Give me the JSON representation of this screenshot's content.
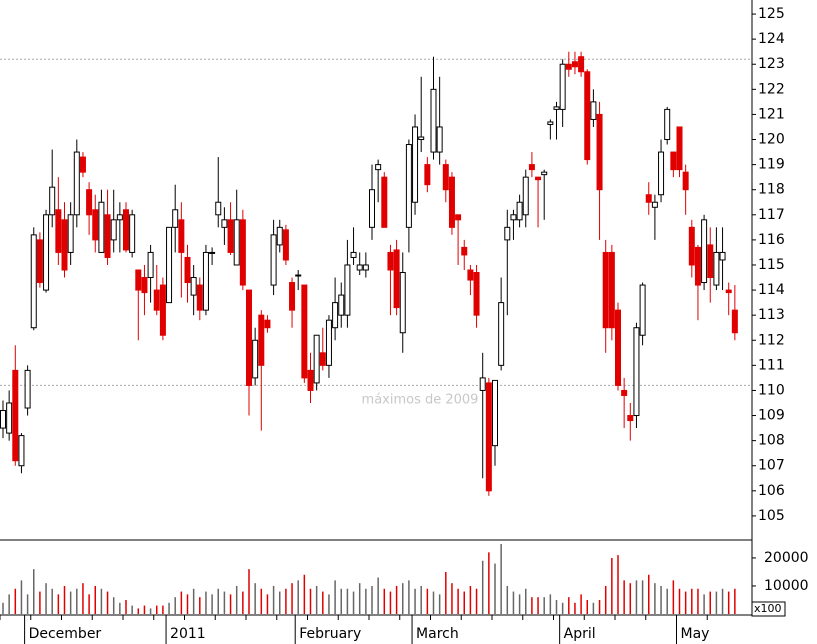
{
  "chart_data": {
    "type": "candlestick",
    "categories": [
      null,
      null,
      null,
      null,
      "December",
      null,
      null,
      null,
      null,
      null,
      null,
      null,
      null,
      null,
      null,
      null,
      null,
      null,
      null,
      null,
      null,
      null,
      null,
      null,
      null,
      null,
      null,
      "2011",
      null,
      null,
      null,
      null,
      null,
      null,
      null,
      null,
      null,
      null,
      null,
      null,
      null,
      null,
      null,
      null,
      null,
      null,
      null,
      null,
      "February",
      null,
      null,
      null,
      null,
      null,
      null,
      null,
      null,
      null,
      null,
      null,
      null,
      null,
      null,
      null,
      null,
      null,
      null,
      "March",
      null,
      null,
      null,
      null,
      null,
      null,
      null,
      null,
      null,
      null,
      null,
      null,
      null,
      null,
      null,
      null,
      null,
      null,
      null,
      null,
      null,
      null,
      null,
      "April",
      null,
      null,
      null,
      null,
      null,
      null,
      null,
      null,
      null,
      null,
      null,
      null,
      null,
      null,
      null,
      null,
      null,
      null,
      "May",
      null,
      null,
      null,
      null,
      null,
      null,
      null,
      null,
      null
    ],
    "open": [
      108.5,
      108.3,
      110.8,
      107,
      109.3,
      112.5,
      116,
      114,
      117,
      117.2,
      116.8,
      115.5,
      117,
      119.3,
      118,
      117.2,
      115.5,
      117,
      116,
      116.8,
      117.2,
      115.5,
      114.8,
      114.5,
      114.5,
      114,
      114.2,
      113.5,
      116.5,
      116.8,
      115.3,
      113.8,
      114.2,
      113.2,
      115.5,
      117,
      116.5,
      116.8,
      115,
      116.8,
      114,
      110.5,
      113,
      112.8,
      114.2,
      115.8,
      116.4,
      114.3,
      114.6,
      114.2,
      110.8,
      110.3,
      111.5,
      111,
      112.5,
      113,
      113,
      115.3,
      114.8,
      114.8,
      116.5,
      118.8,
      118.5,
      115.5,
      115.6,
      112.3,
      116.5,
      117.5,
      120,
      119,
      119.5,
      119.5,
      119,
      118.5,
      117,
      115.7,
      114.8,
      114.7,
      110,
      110.3,
      107.8,
      111,
      116,
      116.8,
      116.8,
      117,
      119,
      118.5,
      118.6,
      120.6,
      121.2,
      121.2,
      123,
      123.1,
      123.3,
      122.7,
      120.8,
      121,
      115.5,
      115.5,
      113.2,
      110,
      109,
      109,
      112.2,
      117.8,
      117.3,
      117.8,
      120,
      119.5,
      120.5,
      118.7,
      116.5,
      115.7,
      114.3,
      115.8,
      114.2,
      115.2,
      114,
      113.2
    ],
    "high": [
      109.6,
      110,
      111.8,
      108.3,
      111,
      116.5,
      116.3,
      117.2,
      119.6,
      118.5,
      117.5,
      117.5,
      120,
      119.5,
      118.3,
      117.8,
      118,
      118,
      118,
      117.5,
      117.5,
      117.2,
      114.8,
      115,
      115.8,
      115,
      114.5,
      116.5,
      118.2,
      117.5,
      115.8,
      115,
      114.5,
      115.8,
      115.7,
      119.3,
      117.3,
      117.5,
      118,
      117.2,
      114,
      112.5,
      113.2,
      113,
      116.8,
      116.8,
      116.6,
      114.5,
      114.8,
      114.2,
      111.5,
      112.2,
      112.5,
      113,
      114.5,
      114.3,
      116,
      116.5,
      115.5,
      115.5,
      119,
      119.2,
      118.7,
      115.8,
      116,
      115.5,
      120,
      121,
      122.5,
      119.3,
      123.3,
      122.5,
      119.2,
      118.7,
      117,
      116,
      115,
      115,
      111.5,
      110.5,
      110.4,
      114.5,
      117.2,
      117.2,
      117.8,
      118.8,
      119.5,
      118.5,
      118.8,
      120.8,
      121.5,
      123.2,
      123.5,
      123.5,
      123.5,
      122.8,
      122,
      121.5,
      116,
      115.8,
      113.5,
      110.5,
      109.5,
      112.7,
      114.3,
      118.3,
      117.8,
      120,
      121.3,
      119.5,
      120.5,
      119,
      116.8,
      115.8,
      117,
      116.5,
      116.5,
      116.5,
      114.3,
      114.2
    ],
    "low": [
      108.1,
      108,
      107,
      106.7,
      109,
      112.4,
      114.1,
      113.9,
      116.5,
      115,
      114.5,
      115,
      116.5,
      118.5,
      116.2,
      115.5,
      115.5,
      115,
      115.5,
      115.5,
      115.5,
      115.3,
      112,
      113,
      113.5,
      113,
      112,
      113.5,
      115.5,
      113.7,
      113.5,
      113,
      112.8,
      113,
      115,
      116.5,
      115.8,
      115.4,
      115,
      114,
      109,
      110.2,
      108.4,
      112.3,
      113.8,
      115.5,
      115,
      112.5,
      114,
      110.3,
      109.5,
      110,
      110.8,
      110.5,
      112,
      112.5,
      112.5,
      115,
      114.6,
      114.5,
      116,
      117.5,
      116.5,
      113,
      113,
      111.5,
      115.5,
      117,
      119.5,
      117.9,
      119.2,
      119,
      117.5,
      116.2,
      115,
      114.8,
      113.8,
      112.5,
      106.5,
      105.8,
      107,
      110.8,
      113,
      116,
      116.5,
      116.5,
      118.5,
      116.5,
      116.8,
      120,
      120,
      120.5,
      122.5,
      122.6,
      122.5,
      119,
      120.5,
      116,
      111.5,
      112,
      110,
      108.5,
      108,
      108.5,
      111.8,
      117,
      116,
      117.5,
      119.8,
      118.5,
      118.5,
      117,
      114.5,
      112.8,
      114,
      113.5,
      114,
      114,
      113,
      112
    ],
    "close": [
      109.2,
      109.5,
      107.2,
      108.2,
      110.8,
      116.2,
      114.3,
      117,
      118.1,
      115.5,
      114.8,
      117,
      119.5,
      118.7,
      117,
      116,
      117.5,
      115.3,
      116.8,
      117,
      115.6,
      117,
      114,
      113.9,
      115.5,
      113.2,
      112.2,
      116.5,
      117.2,
      115.5,
      114.3,
      114.5,
      113.2,
      115.5,
      115.5,
      117.5,
      116.8,
      115.5,
      116.8,
      114.2,
      110.2,
      112,
      111,
      112.5,
      116.2,
      116.5,
      115.2,
      113.2,
      114.6,
      110.5,
      110,
      112.2,
      111,
      112.8,
      113.5,
      113.8,
      115,
      115.5,
      115,
      115,
      118,
      119,
      116.5,
      114.8,
      113.3,
      114.7,
      119.8,
      120.5,
      120.1,
      118.2,
      122,
      120.5,
      118,
      116.5,
      116.8,
      115.4,
      114.4,
      113,
      110.5,
      106,
      110.4,
      113.5,
      116.5,
      117,
      117.5,
      118.5,
      118.8,
      118.4,
      118.7,
      120.7,
      121.3,
      123,
      122.8,
      122.9,
      122.7,
      119.2,
      121.5,
      118,
      112.5,
      112.5,
      110.2,
      109.8,
      108.8,
      112.5,
      114.2,
      117.5,
      117.5,
      119.5,
      121.2,
      118.8,
      118.8,
      118,
      115,
      114.2,
      116.8,
      114.5,
      115.5,
      115.5,
      113.9,
      112.3
    ],
    "up_color": "#ffffff",
    "down_color": "#e00000",
    "ylim": [
      104.04,
      125.56
    ],
    "yticks": [
      105,
      106,
      107,
      108,
      109,
      110,
      111,
      112,
      113,
      114,
      115,
      116,
      117,
      118,
      119,
      120,
      121,
      122,
      123,
      124,
      125
    ],
    "reference_lines": [
      123.2,
      110.2
    ],
    "annotation": "máximos de 2009",
    "volume": {
      "values": [
        4000,
        7000,
        9000,
        12000,
        7000,
        16000,
        8000,
        11000,
        9000,
        7000,
        10000,
        8000,
        9000,
        11000,
        7000,
        10000,
        9000,
        8000,
        6000,
        4000,
        5000,
        3000,
        2000,
        3000,
        2000,
        3000,
        3000,
        4000,
        6000,
        8000,
        7000,
        9000,
        6000,
        8000,
        7000,
        9000,
        8000,
        7000,
        10000,
        8000,
        16000,
        11000,
        9000,
        7000,
        10000,
        8000,
        9000,
        11000,
        12000,
        14000,
        9000,
        10000,
        8000,
        7000,
        12000,
        9000,
        9000,
        8000,
        11000,
        9000,
        10000,
        13000,
        9000,
        8000,
        10000,
        11000,
        12000,
        9000,
        10000,
        9000,
        8000,
        7000,
        15000,
        11000,
        9000,
        8000,
        10000,
        9000,
        19000,
        22000,
        18000,
        25000,
        10000,
        8000,
        7000,
        9000,
        6000,
        6000,
        6000,
        7000,
        5000,
        4000,
        6000,
        4000,
        7000,
        5000,
        4000,
        5000,
        10000,
        20000,
        21000,
        12000,
        11000,
        12000,
        12000,
        14000,
        11000,
        10000,
        9000,
        12000,
        9000,
        8000,
        9000,
        9000,
        7000,
        8000,
        8000,
        9000,
        8000,
        9000
      ],
      "ylim": [
        0,
        26400
      ],
      "yticks": [
        10000,
        20000
      ],
      "unit_label": "x100"
    }
  }
}
